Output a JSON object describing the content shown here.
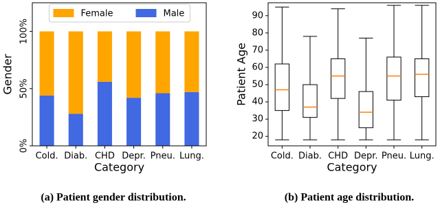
{
  "chart_data": [
    {
      "type": "bar",
      "stacked": true,
      "caption": "(a) Patient gender distribution.",
      "xlabel": "Category",
      "ylabel": "Gender",
      "categories": [
        "Cold.",
        "Diab.",
        "CHD",
        "Depr.",
        "Pneu.",
        "Lung."
      ],
      "series": [
        {
          "name": "Male",
          "color": "#4169e1",
          "values": [
            44,
            28,
            56,
            42,
            46,
            47
          ]
        },
        {
          "name": "Female",
          "color": "#ffa500",
          "values": [
            56,
            72,
            44,
            58,
            54,
            53
          ]
        }
      ],
      "ylim": [
        0,
        125
      ],
      "yticks": [
        {
          "value": 0,
          "label": "0%"
        },
        {
          "value": 50,
          "label": "50%"
        },
        {
          "value": 100,
          "label": "100%"
        }
      ],
      "legend": "upper center"
    },
    {
      "type": "box",
      "caption": "(b) Patient age distribution.",
      "xlabel": "Category",
      "ylabel": "Patient Age",
      "categories": [
        "Cold.",
        "Diab.",
        "CHD",
        "Depr.",
        "Pneu.",
        "Lung."
      ],
      "whisker_low": [
        18,
        18,
        18,
        18,
        18,
        18
      ],
      "q1": [
        35,
        31,
        42,
        25,
        41,
        43
      ],
      "median": [
        47,
        37,
        55,
        34,
        55,
        56
      ],
      "q3": [
        62,
        50,
        65,
        46,
        66,
        65
      ],
      "whisker_high": [
        95,
        78,
        94,
        77,
        96,
        96
      ],
      "median_color": "#ff7f0e",
      "ylim": [
        14.5,
        97.5
      ],
      "yticks": [
        20,
        30,
        40,
        50,
        60,
        70,
        80,
        90
      ]
    }
  ]
}
